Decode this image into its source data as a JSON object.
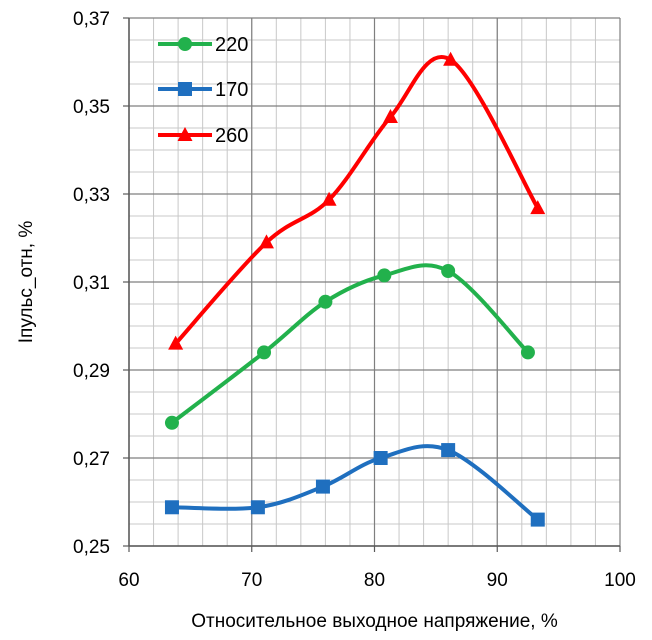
{
  "chart_data": {
    "type": "line",
    "title": "",
    "xlabel": "Относительное выходное напряжение, %",
    "ylabel": "Iпульс_отн, %",
    "xlim": [
      60,
      100
    ],
    "ylim": [
      0.25,
      0.37
    ],
    "x_major_ticks": [
      60,
      70,
      80,
      90,
      100
    ],
    "x_tick_labels": [
      "60",
      "70",
      "80",
      "90",
      "100"
    ],
    "y_major_ticks": [
      0.25,
      0.27,
      0.29,
      0.31,
      0.33,
      0.35,
      0.37
    ],
    "y_tick_labels": [
      "0,25",
      "0,27",
      "0,29",
      "0,31",
      "0,33",
      "0,35",
      "0,37"
    ],
    "grid": "major and minor",
    "smooth": true,
    "legend_position": "top-left",
    "series": [
      {
        "name": "220",
        "color": "#22B14C",
        "marker": "circle",
        "x": [
          63.5,
          71.0,
          76.0,
          80.8,
          86.0,
          92.5
        ],
        "y": [
          0.278,
          0.294,
          0.3055,
          0.3115,
          0.3125,
          0.294
        ]
      },
      {
        "name": "170",
        "color": "#1F6FBF",
        "marker": "square",
        "x": [
          63.5,
          70.5,
          75.8,
          80.5,
          86.0,
          93.3
        ],
        "y": [
          0.2588,
          0.2588,
          0.2635,
          0.27,
          0.2718,
          0.256
        ]
      },
      {
        "name": "260",
        "color": "#FF0000",
        "marker": "triangle",
        "x": [
          63.8,
          71.2,
          76.3,
          81.3,
          86.2,
          93.3
        ],
        "y": [
          0.296,
          0.319,
          0.3287,
          0.3475,
          0.3605,
          0.3268
        ]
      }
    ]
  }
}
